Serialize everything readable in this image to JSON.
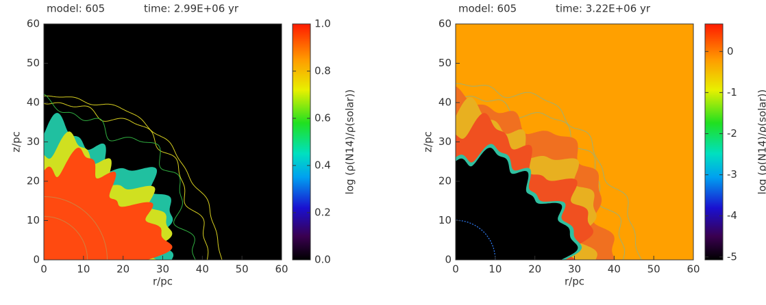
{
  "chart_data": [
    {
      "type": "image",
      "title": "model: 605",
      "subtitle": "time: 2.99E+06 yr",
      "xlabel": "r/pc",
      "ylabel": "z/pc",
      "xlim": [
        0,
        60
      ],
      "ylim": [
        0,
        60
      ],
      "xticks": [
        0,
        10,
        20,
        30,
        40,
        50,
        60
      ],
      "yticks": [
        0,
        10,
        20,
        30,
        40,
        50,
        60
      ],
      "colorbar_label": "log (ρ(N14)/ρ(solar))",
      "clim": [
        0,
        1
      ],
      "cticks": [
        {
          "value": 0,
          "label": "0.0"
        },
        0.2,
        0.4,
        0.6,
        0.8,
        {
          "value": 1,
          "label": "1.0"
        }
      ]
    },
    {
      "type": "image",
      "title": "model: 605",
      "subtitle": "time: 3.22E+06 yr",
      "xlabel": "r/pc",
      "ylabel": "z/pc",
      "xlim": [
        0,
        60
      ],
      "ylim": [
        0,
        60
      ],
      "xticks": [
        0,
        10,
        20,
        30,
        40,
        50,
        60
      ],
      "yticks": [
        0,
        10,
        20,
        30,
        40,
        50,
        60
      ],
      "colorbar_label": "log (ρ(N14)/ρ(solar))",
      "clim": [
        -5.07,
        0.67
      ],
      "cticks": [
        -5,
        -4,
        -3,
        -2,
        -1,
        0
      ]
    }
  ]
}
